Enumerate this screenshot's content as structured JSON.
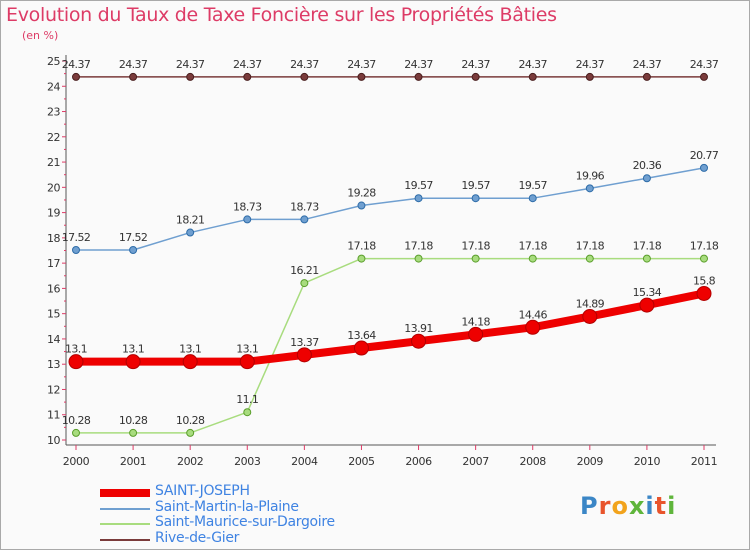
{
  "title": "Evolution du Taux de Taxe Foncière sur les Propriétés Bâties",
  "unit_label": "(en %)",
  "logo": {
    "text": "Proxiti",
    "letter_colors": [
      "#3b86c6",
      "#e8542c",
      "#f2a31c",
      "#5fb53b",
      "#3b86c6",
      "#e8542c",
      "#5fb53b"
    ]
  },
  "chart_data": {
    "type": "line",
    "title": "Evolution du Taux de Taxe Foncière sur les Propriétés Bâties",
    "ylabel": "(en %)",
    "x": [
      "2000",
      "2001",
      "2002",
      "2003",
      "2004",
      "2005",
      "2006",
      "2007",
      "2008",
      "2009",
      "2010",
      "2011"
    ],
    "ylim": [
      10,
      25
    ],
    "yticks": [
      "10",
      "11",
      "12",
      "13",
      "14",
      "15",
      "16",
      "17",
      "18",
      "19",
      "20",
      "21",
      "22",
      "23",
      "24",
      "25"
    ],
    "grid": false,
    "legend_position": "bottom-left",
    "series": [
      {
        "name": "SAINT-JOSEPH",
        "color": "#ee0000",
        "values": [
          13.1,
          13.1,
          13.1,
          13.1,
          13.37,
          13.64,
          13.91,
          14.18,
          14.46,
          14.89,
          15.34,
          15.8
        ],
        "labels": [
          "13.1",
          "13.1",
          "13.1",
          "13.1",
          "13.37",
          "13.64",
          "13.91",
          "14.18",
          "14.46",
          "14.89",
          "15.34",
          "15.8"
        ]
      },
      {
        "name": "Saint-Martin-la-Plaine",
        "color": "#6f9fd0",
        "values": [
          17.52,
          17.52,
          18.21,
          18.73,
          18.73,
          19.28,
          19.57,
          19.57,
          19.57,
          19.96,
          20.36,
          20.77
        ],
        "labels": [
          "17.52",
          "17.52",
          "18.21",
          "18.73",
          "18.73",
          "19.28",
          "19.57",
          "19.57",
          "19.57",
          "19.96",
          "20.36",
          "20.77"
        ]
      },
      {
        "name": "Saint-Maurice-sur-Dargoire",
        "color": "#a8dc7e",
        "values": [
          10.28,
          10.28,
          10.28,
          11.1,
          16.21,
          17.18,
          17.18,
          17.18,
          17.18,
          17.18,
          17.18,
          17.18
        ],
        "labels": [
          "10.28",
          "10.28",
          "10.28",
          "11.1",
          "16.21",
          "17.18",
          "17.18",
          "17.18",
          "17.18",
          "17.18",
          "17.18",
          "17.18"
        ]
      },
      {
        "name": "Rive-de-Gier",
        "color": "#7a3b3b",
        "values": [
          24.37,
          24.37,
          24.37,
          24.37,
          24.37,
          24.37,
          24.37,
          24.37,
          24.37,
          24.37,
          24.37,
          24.37
        ],
        "labels": [
          "24.37",
          "24.37",
          "24.37",
          "24.37",
          "24.37",
          "24.37",
          "24.37",
          "24.37",
          "24.37",
          "24.37",
          "24.37",
          "24.37"
        ]
      }
    ]
  }
}
